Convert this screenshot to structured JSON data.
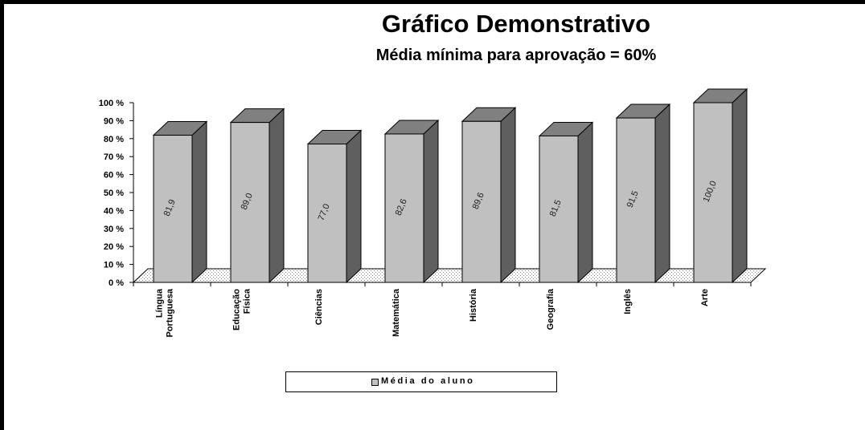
{
  "chart_data": {
    "type": "bar",
    "title": "Gráfico Demonstrativo",
    "subtitle": "Média mínima para aprovação = 60%",
    "categories": [
      [
        "Língua",
        "Portuguesa"
      ],
      [
        "Educação",
        "Física"
      ],
      [
        "Ciências"
      ],
      [
        "Matemática"
      ],
      [
        "História"
      ],
      [
        "Geografia"
      ],
      [
        "Inglês"
      ],
      [
        "Arte"
      ]
    ],
    "series": [
      {
        "name": "Média do aluno",
        "values": [
          81.9,
          89.0,
          77.0,
          82.6,
          89.6,
          81.5,
          91.5,
          100.0
        ],
        "value_labels": [
          "81,9",
          "89,0",
          "77,0",
          "82,6",
          "89,6",
          "81,5",
          "91,5",
          "100,0"
        ]
      }
    ],
    "ylim": [
      0,
      100
    ],
    "y_ticks": [
      0,
      10,
      20,
      30,
      40,
      50,
      60,
      70,
      80,
      90,
      100
    ],
    "y_tick_labels": [
      "0 %",
      "10 %",
      "20 %",
      "30 %",
      "40 %",
      "50 %",
      "60 %",
      "70 %",
      "80 %",
      "90 %",
      "100 %"
    ],
    "legend_position": "bottom",
    "style": "3d-column",
    "colors": {
      "bar_front": "#c0c0c0",
      "bar_top": "#808080",
      "bar_side": "#5f5f5f"
    }
  }
}
